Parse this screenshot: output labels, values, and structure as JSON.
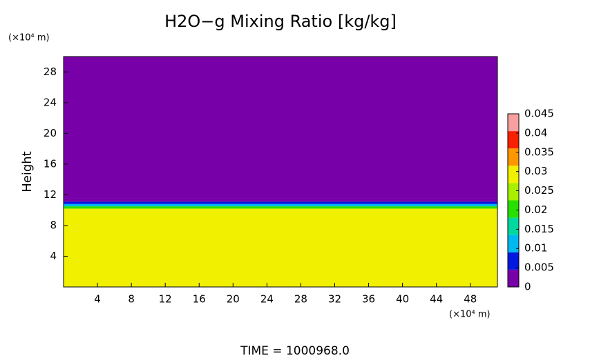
{
  "chart_data": {
    "type": "contour",
    "title": "H2O−g Mixing Ratio [kg/kg]",
    "y_label": "Height",
    "x_unit": "(×10⁴ m)",
    "y_unit": "(×10⁴ m)",
    "footer": "TIME  =  1000968.0",
    "xlim": [
      0,
      51.2
    ],
    "xticks": [
      4,
      8,
      12,
      16,
      20,
      24,
      28,
      32,
      36,
      40,
      44,
      48
    ],
    "ylim": [
      0,
      30
    ],
    "yticks": [
      4,
      8,
      12,
      16,
      20,
      24,
      28
    ],
    "y_edges": [
      0,
      10.2,
      10.5,
      10.8,
      11.1,
      11.5,
      30
    ],
    "values": [
      0.028,
      0.022,
      0.013,
      0.007,
      0.003,
      0.001
    ],
    "clim": [
      0,
      0.045
    ],
    "cticks": [
      0,
      0.005,
      0.01,
      0.015,
      0.02,
      0.025,
      0.03,
      0.035,
      0.04,
      0.045
    ],
    "colors": [
      "#7800a8",
      "#0018e0",
      "#00b8f0",
      "#00d8a0",
      "#28e000",
      "#a8f000",
      "#f0f000",
      "#ff9800",
      "#f82000",
      "#f8a0a0"
    ]
  }
}
